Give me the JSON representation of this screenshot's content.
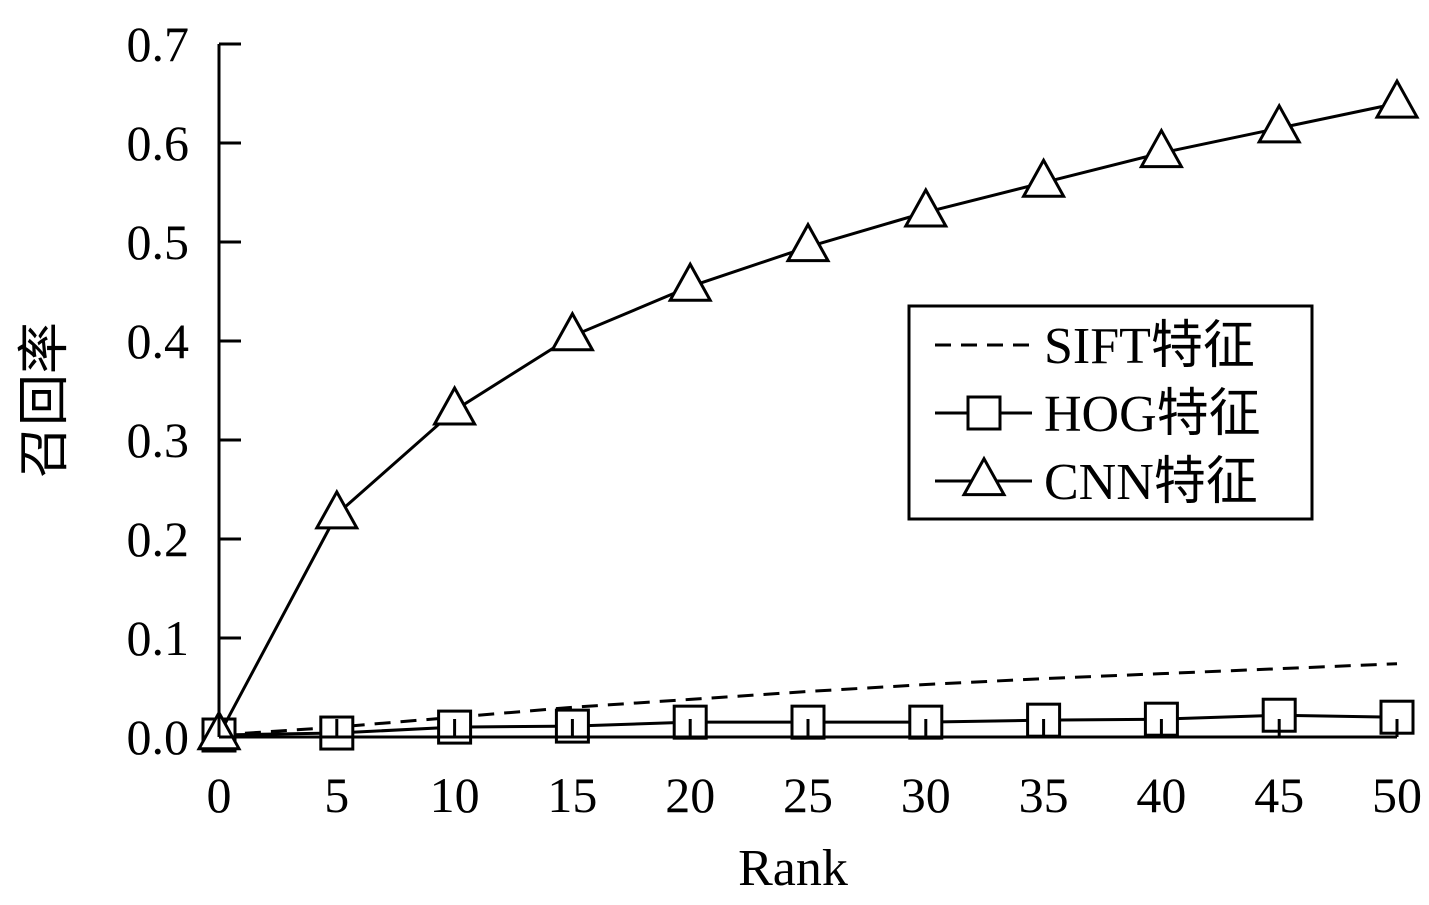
{
  "chart_data": {
    "type": "line",
    "xlabel": "Rank",
    "ylabel": "召回率",
    "xlim": [
      0,
      50
    ],
    "ylim": [
      0,
      0.7
    ],
    "x_ticks": [
      0,
      5,
      10,
      15,
      20,
      25,
      30,
      35,
      40,
      45,
      50
    ],
    "x_tick_labels": [
      "0",
      "5",
      "10",
      "15",
      "20",
      "25",
      "30",
      "35",
      "40",
      "45",
      "50"
    ],
    "y_ticks": [
      0,
      0.1,
      0.2,
      0.3,
      0.4,
      0.5,
      0.6,
      0.7
    ],
    "y_tick_labels": [
      "0.0",
      "0.1",
      "0.2",
      "0.3",
      "0.4",
      "0.5",
      "0.6",
      "0.7"
    ],
    "grid": false,
    "legend_position": "right",
    "series": [
      {
        "name": "SIFT特征",
        "style": "dashed",
        "marker": "none",
        "x": [
          0,
          5,
          10,
          15,
          20,
          25,
          30,
          35,
          40,
          45,
          50
        ],
        "y": [
          0.002,
          0.01,
          0.02,
          0.03,
          0.038,
          0.046,
          0.053,
          0.059,
          0.064,
          0.069,
          0.074
        ]
      },
      {
        "name": "HOG特征",
        "style": "solid",
        "marker": "square",
        "x": [
          0,
          5,
          10,
          15,
          20,
          25,
          30,
          35,
          40,
          45,
          50
        ],
        "y": [
          0.002,
          0.004,
          0.01,
          0.011,
          0.015,
          0.015,
          0.015,
          0.017,
          0.018,
          0.022,
          0.02
        ]
      },
      {
        "name": "CNN特征",
        "style": "solid",
        "marker": "triangle",
        "x": [
          0,
          5,
          10,
          15,
          20,
          25,
          30,
          35,
          40,
          45,
          50
        ],
        "y": [
          0.002,
          0.225,
          0.33,
          0.405,
          0.455,
          0.495,
          0.53,
          0.56,
          0.59,
          0.615,
          0.64
        ]
      },
      {
        "name": "",
        "style": "solid",
        "marker": "none",
        "x": [
          0,
          50
        ],
        "y": [
          0,
          0
        ]
      }
    ]
  }
}
